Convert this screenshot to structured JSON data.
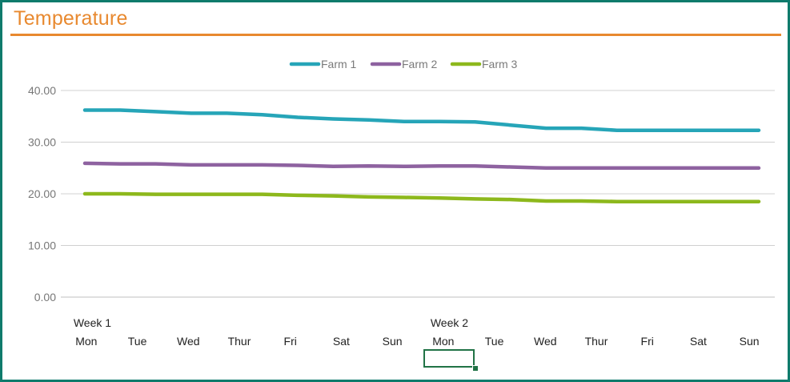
{
  "title": "Temperature",
  "colors": {
    "frame": "#0f7b6c",
    "title": "#e8892f",
    "grid": "#d0d0d0",
    "Farm 1": "#26a5b8",
    "Farm 2": "#8e62a0",
    "Farm 3": "#8db81c"
  },
  "chart_data": {
    "type": "line",
    "title": "",
    "xlabel": "",
    "ylabel": "",
    "ylim": [
      0,
      40
    ],
    "yticks": [
      "0.00",
      "10.00",
      "20.00",
      "30.00",
      "40.00"
    ],
    "grid": true,
    "legend_position": "top",
    "groups": [
      {
        "label": "Week 1",
        "days": [
          "Mon",
          "Tue",
          "Wed",
          "Thur",
          "Fri",
          "Sat",
          "Sun"
        ]
      },
      {
        "label": "Week 2",
        "days": [
          "Mon",
          "Tue",
          "Wed",
          "Thur",
          "Fri",
          "Sat",
          "Sun"
        ]
      }
    ],
    "series": [
      {
        "name": "Farm 1",
        "values": [
          36.2,
          36.2,
          35.9,
          35.6,
          35.6,
          35.3,
          34.8,
          34.5,
          34.3,
          34.0,
          34.0,
          33.9,
          33.3,
          32.7,
          32.7,
          32.3,
          32.3,
          32.3,
          32.3,
          32.3
        ]
      },
      {
        "name": "Farm 2",
        "values": [
          25.9,
          25.8,
          25.8,
          25.6,
          25.6,
          25.6,
          25.5,
          25.3,
          25.4,
          25.3,
          25.4,
          25.4,
          25.2,
          25.0,
          25.0,
          25.0,
          25.0,
          25.0,
          25.0,
          25.0
        ]
      },
      {
        "name": "Farm 3",
        "values": [
          20.0,
          20.0,
          19.9,
          19.9,
          19.9,
          19.9,
          19.7,
          19.6,
          19.4,
          19.3,
          19.2,
          19.0,
          18.9,
          18.6,
          18.6,
          18.5,
          18.5,
          18.5,
          18.5,
          18.5
        ]
      }
    ]
  }
}
